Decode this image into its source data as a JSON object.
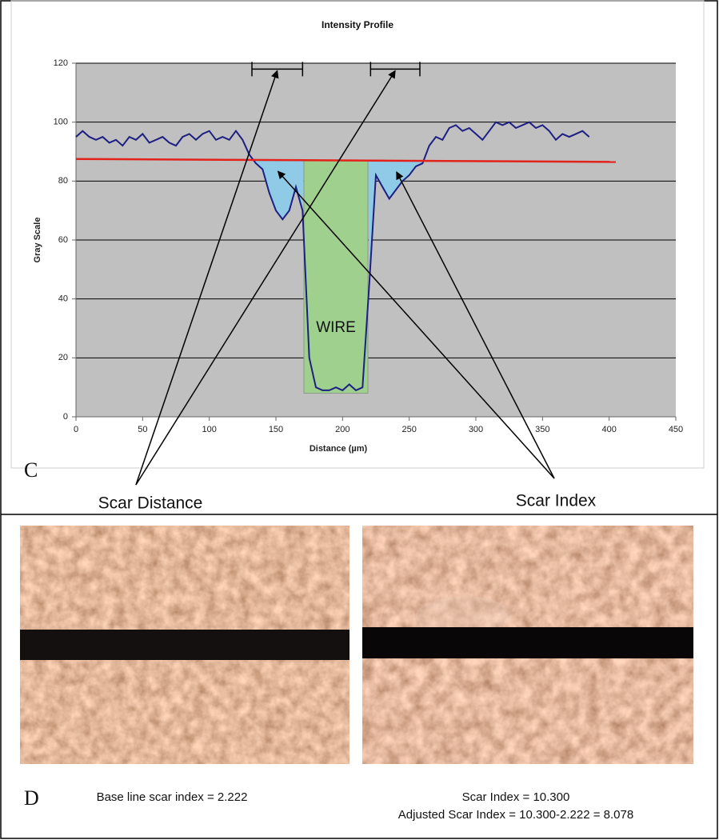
{
  "chart_data": {
    "type": "line",
    "title": "Intensity Profile",
    "x_label": "Distance (µm)",
    "y_label": "Gray Scale",
    "xlim": [
      0,
      450
    ],
    "ylim": [
      0,
      120
    ],
    "xticks": [
      0,
      50,
      100,
      150,
      200,
      250,
      300,
      350,
      400,
      450
    ],
    "yticks": [
      0,
      20,
      40,
      60,
      80,
      100,
      120
    ],
    "grid": true,
    "series": [
      {
        "color": "#1d1f82",
        "x": [
          0,
          5,
          10,
          15,
          20,
          25,
          30,
          35,
          40,
          45,
          50,
          55,
          60,
          65,
          70,
          75,
          80,
          85,
          90,
          95,
          100,
          105,
          110,
          115,
          120,
          125,
          130,
          135,
          140,
          145,
          150,
          155,
          160,
          165,
          170,
          175,
          180,
          185,
          190,
          195,
          200,
          205,
          210,
          215,
          220,
          225,
          230,
          235,
          240,
          245,
          250,
          255,
          260,
          265,
          270,
          275,
          280,
          285,
          290,
          295,
          300,
          305,
          310,
          315,
          320,
          325,
          330,
          335,
          340,
          345,
          350,
          355,
          360,
          365,
          370,
          375,
          380,
          385
        ],
        "values": [
          95,
          97,
          95,
          94,
          95,
          93,
          94,
          92,
          95,
          94,
          96,
          93,
          94,
          95,
          93,
          92,
          95,
          96,
          94,
          96,
          97,
          94,
          95,
          94,
          97,
          94,
          89,
          86,
          84,
          76,
          70,
          67,
          70,
          78,
          70,
          20,
          10,
          9,
          9,
          10,
          9,
          11,
          9,
          10,
          45,
          82,
          78,
          74,
          77,
          80,
          82,
          85,
          86,
          92,
          95,
          94,
          98,
          99,
          97,
          98,
          96,
          94,
          97,
          100,
          99,
          100,
          98,
          99,
          100,
          98,
          99,
          97,
          94,
          96,
          95,
          96,
          97,
          95
        ]
      },
      {
        "color": "#e3231b",
        "x": [
          0,
          405
        ],
        "values": [
          87.5,
          86.5
        ]
      }
    ],
    "wire_region": {
      "label": "WIRE",
      "x": [
        171,
        219
      ],
      "y": [
        8,
        87
      ],
      "color": "#9fd08e"
    },
    "scar_regions": {
      "color": "#8fcbe6",
      "spans": [
        [
          132,
          171
        ],
        [
          219,
          262
        ]
      ]
    },
    "scar_distance_brackets": {
      "y": 118,
      "spans": [
        [
          132,
          170
        ],
        [
          221,
          258
        ]
      ]
    },
    "annotations": {
      "scar_distance": "Scar Distance",
      "scar_index": "Scar Index"
    },
    "panel_label": "C"
  },
  "panel_d": {
    "label": "D",
    "left_caption": "Base line scar index = 2.222",
    "right_caption": [
      "Scar Index = 10.300",
      "Adjusted Scar Index = 10.300-2.222 = 8.078"
    ]
  }
}
